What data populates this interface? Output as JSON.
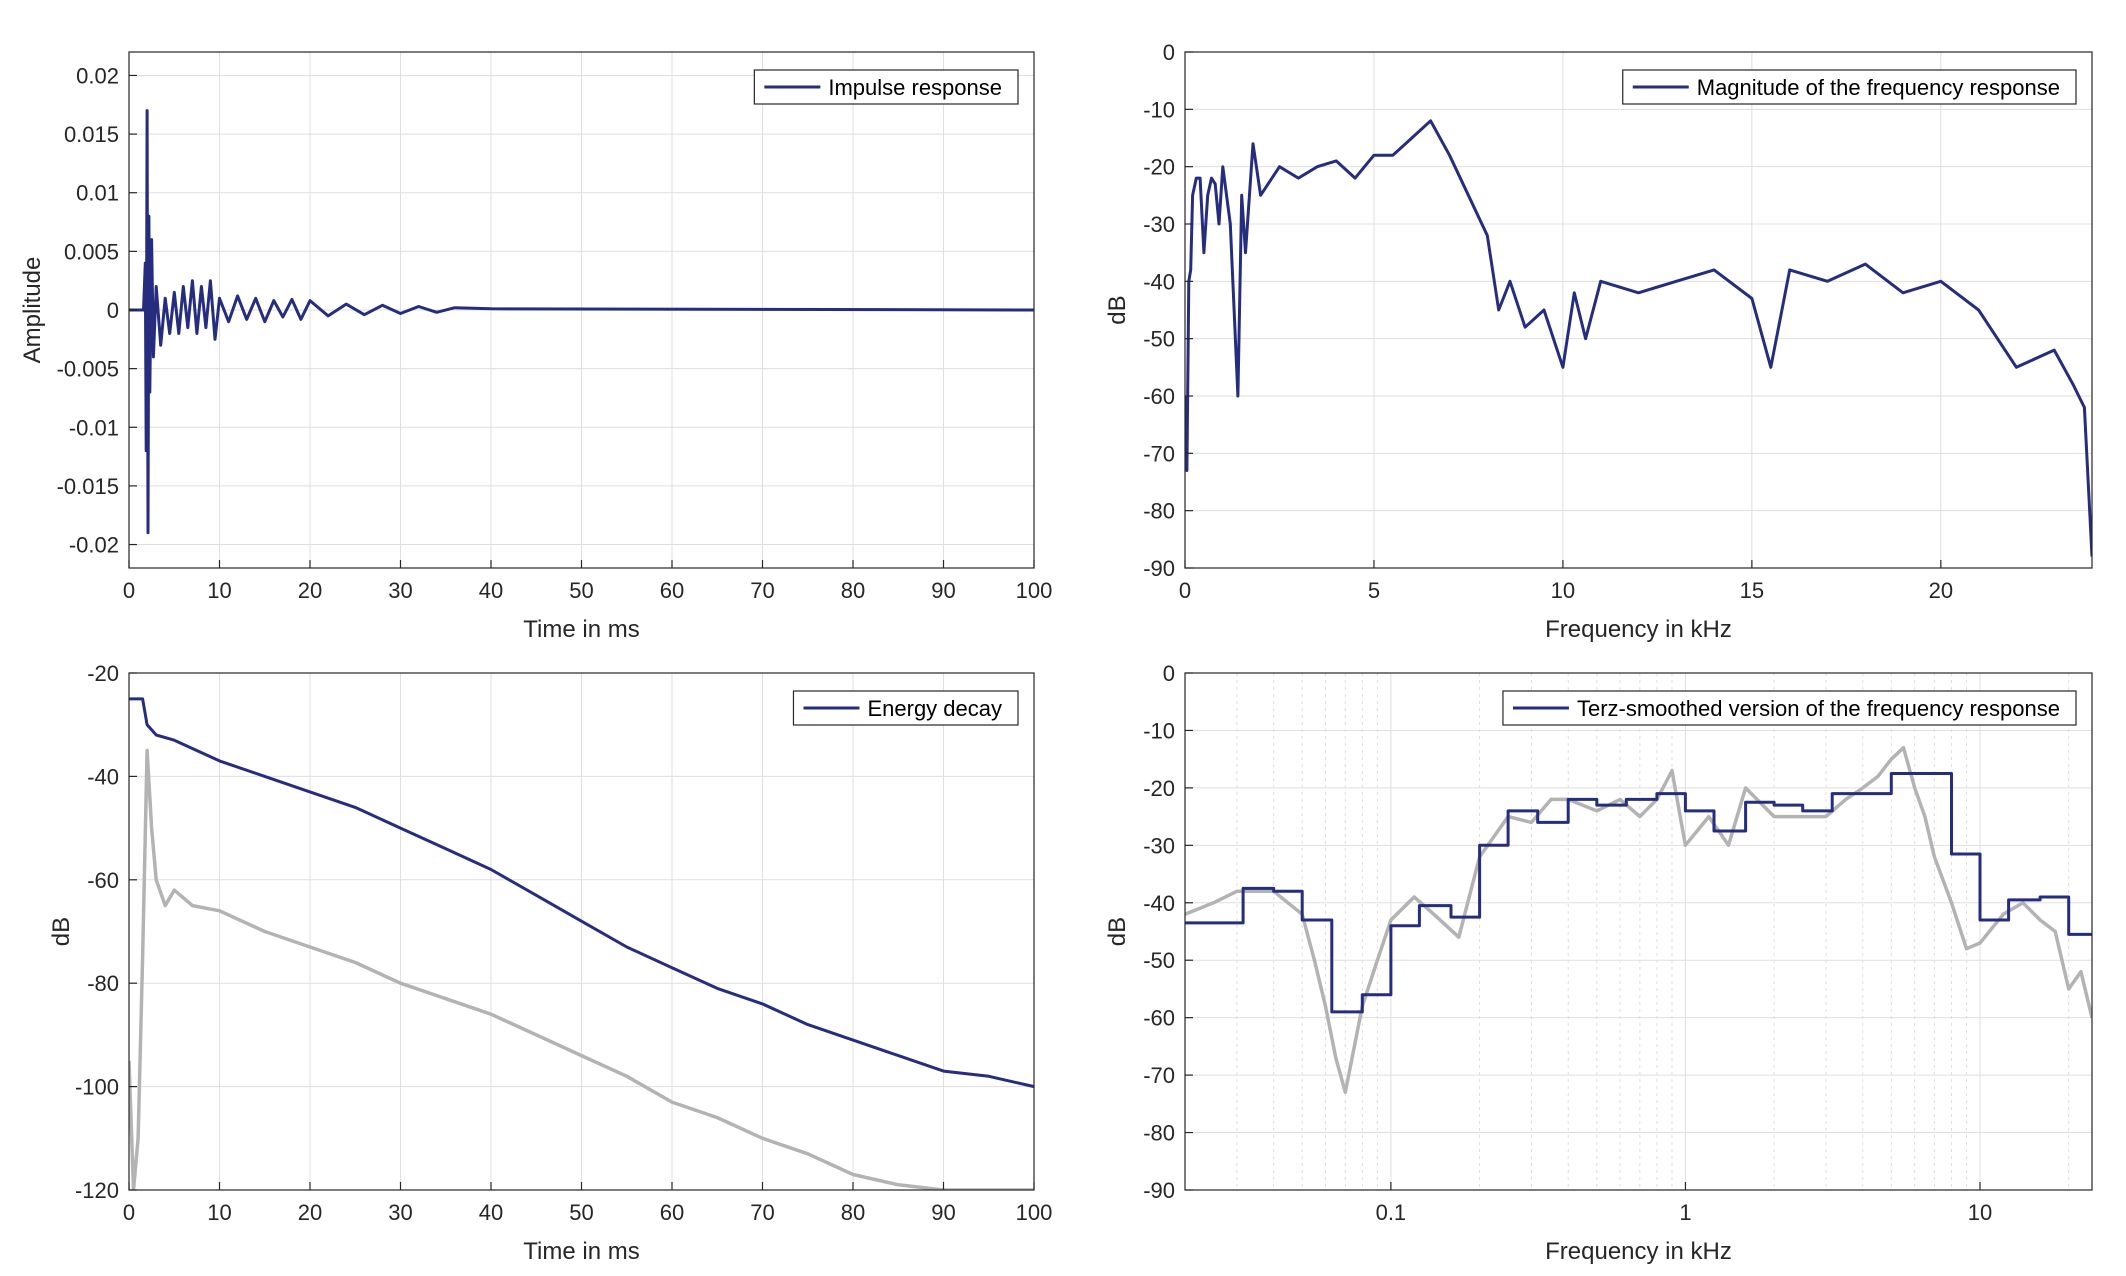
{
  "colors": {
    "primary": "#262d7f",
    "secondary": "#b3b3b3",
    "axes": "#262626",
    "grid": "#dfdfdf"
  },
  "chart_data": [
    {
      "id": "impulse",
      "type": "line",
      "xlabel": "Time in ms",
      "ylabel": "Amplitude",
      "xlim": [
        0,
        100
      ],
      "ylim": [
        -0.022,
        0.022
      ],
      "xticks": [
        0,
        10,
        20,
        30,
        40,
        50,
        60,
        70,
        80,
        90,
        100
      ],
      "xtick_labels": [
        "0",
        "10",
        "20",
        "30",
        "40",
        "50",
        "60",
        "70",
        "80",
        "90",
        "100"
      ],
      "yticks": [
        0.02,
        0.015,
        0.01,
        0.005,
        0,
        -0.005,
        -0.01,
        -0.015,
        -0.02
      ],
      "ytick_labels": [
        "0.02",
        "0.015",
        "0.01",
        "0.005",
        "0",
        "-0.005",
        "-0.01",
        "-0.015",
        "-0.02"
      ],
      "grid": true,
      "legend": "top-right",
      "series": [
        {
          "name": "Impulse response",
          "color": "#262d7f",
          "x": [
            0,
            1.6,
            1.8,
            1.9,
            2.0,
            2.1,
            2.2,
            2.3,
            2.5,
            2.7,
            3,
            3.5,
            4,
            4.5,
            5,
            5.5,
            6,
            6.5,
            7,
            7.5,
            8,
            8.5,
            9,
            9.5,
            10,
            11,
            12,
            13,
            14,
            15,
            16,
            17,
            18,
            19,
            20,
            22,
            24,
            26,
            28,
            30,
            32,
            34,
            36,
            40,
            100
          ],
          "y": [
            0,
            0,
            0.004,
            -0.012,
            0.017,
            -0.019,
            0.008,
            -0.007,
            0.006,
            -0.004,
            0.002,
            -0.003,
            0.001,
            -0.002,
            0.0015,
            -0.002,
            0.002,
            -0.0015,
            0.0025,
            -0.002,
            0.002,
            -0.0015,
            0.0025,
            -0.0025,
            0.001,
            -0.001,
            0.0012,
            -0.0008,
            0.001,
            -0.001,
            0.0008,
            -0.0006,
            0.0009,
            -0.0008,
            0.0008,
            -0.0005,
            0.0005,
            -0.0004,
            0.0004,
            -0.0003,
            0.0003,
            -0.0002,
            0.0002,
            0.0001,
            0
          ]
        }
      ]
    },
    {
      "id": "magnitude",
      "type": "line",
      "xlabel": "Frequency in kHz",
      "ylabel": "dB",
      "xlim": [
        0,
        24
      ],
      "ylim": [
        -90,
        0
      ],
      "xticks": [
        0,
        5,
        10,
        15,
        20
      ],
      "xtick_labels": [
        "0",
        "5",
        "10",
        "15",
        "20"
      ],
      "yticks": [
        0,
        -10,
        -20,
        -30,
        -40,
        -50,
        -60,
        -70,
        -80,
        -90
      ],
      "ytick_labels": [
        "0",
        "-10",
        "-20",
        "-30",
        "-40",
        "-50",
        "-60",
        "-70",
        "-80",
        "-90"
      ],
      "grid": true,
      "legend": "top-right",
      "series": [
        {
          "name": "Magnitude of the frequency response",
          "color": "#262d7f",
          "x": [
            0,
            0.05,
            0.1,
            0.15,
            0.2,
            0.3,
            0.4,
            0.5,
            0.6,
            0.7,
            0.8,
            0.9,
            1.0,
            1.2,
            1.4,
            1.5,
            1.6,
            1.8,
            2.0,
            2.5,
            3.0,
            3.5,
            4.0,
            4.5,
            5.0,
            5.5,
            6.0,
            6.5,
            7.0,
            7.5,
            8.0,
            8.3,
            8.6,
            9.0,
            9.5,
            10.0,
            10.3,
            10.6,
            11.0,
            12.0,
            13.0,
            14.0,
            15.0,
            15.5,
            16.0,
            17.0,
            18.0,
            19.0,
            20.0,
            21.0,
            21.5,
            22.0,
            23.0,
            23.5,
            23.8,
            24.0
          ],
          "y": [
            -60,
            -73,
            -40,
            -38,
            -25,
            -22,
            -22,
            -35,
            -25,
            -22,
            -23,
            -30,
            -20,
            -30,
            -60,
            -25,
            -35,
            -16,
            -25,
            -20,
            -22,
            -20,
            -19,
            -22,
            -18,
            -18,
            -15,
            -12,
            -18,
            -25,
            -32,
            -45,
            -40,
            -48,
            -45,
            -55,
            -42,
            -50,
            -40,
            -42,
            -40,
            -38,
            -43,
            -55,
            -38,
            -40,
            -37,
            -42,
            -40,
            -45,
            -50,
            -55,
            -52,
            -58,
            -62,
            -88
          ]
        }
      ]
    },
    {
      "id": "energy",
      "type": "line",
      "xlabel": "Time in ms",
      "ylabel": "dB",
      "xlim": [
        0,
        100
      ],
      "ylim": [
        -120,
        -20
      ],
      "xticks": [
        0,
        10,
        20,
        30,
        40,
        50,
        60,
        70,
        80,
        90,
        100
      ],
      "xtick_labels": [
        "0",
        "10",
        "20",
        "30",
        "40",
        "50",
        "60",
        "70",
        "80",
        "90",
        "100"
      ],
      "yticks": [
        -20,
        -40,
        -60,
        -80,
        -100,
        -120
      ],
      "ytick_labels": [
        "-20",
        "-40",
        "-60",
        "-80",
        "-100",
        "-120"
      ],
      "grid": true,
      "legend": "top-right",
      "series": [
        {
          "name": "Energy decay",
          "color": "#262d7f",
          "x": [
            0,
            1.5,
            2,
            3,
            5,
            10,
            15,
            20,
            25,
            30,
            35,
            40,
            45,
            50,
            55,
            60,
            65,
            70,
            75,
            80,
            85,
            90,
            95,
            100
          ],
          "y": [
            -25,
            -25,
            -30,
            -32,
            -33,
            -37,
            -40,
            -43,
            -46,
            -50,
            -54,
            -58,
            -63,
            -68,
            -73,
            -77,
            -81,
            -84,
            -88,
            -91,
            -94,
            -97,
            -98,
            -100
          ]
        },
        {
          "color": "#b3b3b3",
          "x": [
            0,
            0.5,
            1,
            1.5,
            2,
            2.5,
            3,
            4,
            5,
            7,
            10,
            15,
            20,
            25,
            30,
            35,
            40,
            45,
            50,
            55,
            60,
            65,
            70,
            75,
            80,
            85,
            90,
            95,
            100
          ],
          "y": [
            -95,
            -120,
            -110,
            -75,
            -35,
            -50,
            -60,
            -65,
            -62,
            -65,
            -66,
            -70,
            -73,
            -76,
            -80,
            -83,
            -86,
            -90,
            -94,
            -98,
            -103,
            -106,
            -110,
            -113,
            -117,
            -119,
            -120,
            -120,
            -120
          ]
        }
      ]
    },
    {
      "id": "terz",
      "type": "line",
      "xlabel": "Frequency in kHz",
      "ylabel": "dB",
      "xscale": "log",
      "xlim": [
        0.02,
        24
      ],
      "ylim": [
        -90,
        0
      ],
      "xticks": [
        0.1,
        1,
        10
      ],
      "xtick_labels": [
        "0.1",
        "1",
        "10"
      ],
      "yticks": [
        0,
        -10,
        -20,
        -30,
        -40,
        -50,
        -60,
        -70,
        -80,
        -90
      ],
      "ytick_labels": [
        "0",
        "-10",
        "-20",
        "-30",
        "-40",
        "-50",
        "-60",
        "-70",
        "-80",
        "-90"
      ],
      "grid": true,
      "legend": "top-right",
      "series": [
        {
          "name": "Terz-smoothed version of the frequency response",
          "color": "#262d7f",
          "step": true,
          "x": [
            0.02,
            0.0315,
            0.04,
            0.05,
            0.063,
            0.08,
            0.1,
            0.125,
            0.16,
            0.2,
            0.25,
            0.315,
            0.4,
            0.5,
            0.63,
            0.8,
            1.0,
            1.25,
            1.6,
            2.0,
            2.5,
            3.15,
            4.0,
            5.0,
            6.3,
            8.0,
            10.0,
            12.5,
            16.0,
            20.0,
            24.0
          ],
          "y": [
            -43.5,
            -37.5,
            -38,
            -43,
            -59,
            -56,
            -44,
            -40.5,
            -42.5,
            -30,
            -24,
            -26,
            -22,
            -23,
            -22,
            -21,
            -24,
            -27.5,
            -22.5,
            -23,
            -24,
            -21,
            -21,
            -17.5,
            -17.5,
            -31.5,
            -43,
            -39.5,
            -39,
            -45.5,
            -45.5
          ]
        },
        {
          "color": "#b3b3b3",
          "x": [
            0.02,
            0.025,
            0.03,
            0.04,
            0.05,
            0.055,
            0.06,
            0.065,
            0.07,
            0.08,
            0.09,
            0.1,
            0.12,
            0.14,
            0.17,
            0.2,
            0.25,
            0.3,
            0.35,
            0.4,
            0.5,
            0.6,
            0.7,
            0.8,
            0.9,
            1.0,
            1.2,
            1.4,
            1.6,
            2.0,
            2.5,
            3.0,
            3.5,
            4.0,
            4.5,
            5.0,
            5.5,
            6.0,
            6.5,
            7.0,
            8.0,
            9.0,
            10.0,
            12.0,
            14.0,
            16.0,
            18.0,
            20.0,
            22.0,
            24.0
          ],
          "y": [
            -42,
            -40,
            -38,
            -38,
            -42,
            -50,
            -58,
            -67,
            -73,
            -58,
            -50,
            -43,
            -39,
            -42,
            -46,
            -32,
            -25,
            -26,
            -22,
            -22,
            -24,
            -22,
            -25,
            -22,
            -17,
            -30,
            -25,
            -30,
            -20,
            -25,
            -25,
            -25,
            -22,
            -20,
            -18,
            -15,
            -13,
            -20,
            -25,
            -32,
            -40,
            -48,
            -47,
            -42,
            -40,
            -43,
            -45,
            -55,
            -52,
            -60
          ]
        }
      ]
    }
  ]
}
